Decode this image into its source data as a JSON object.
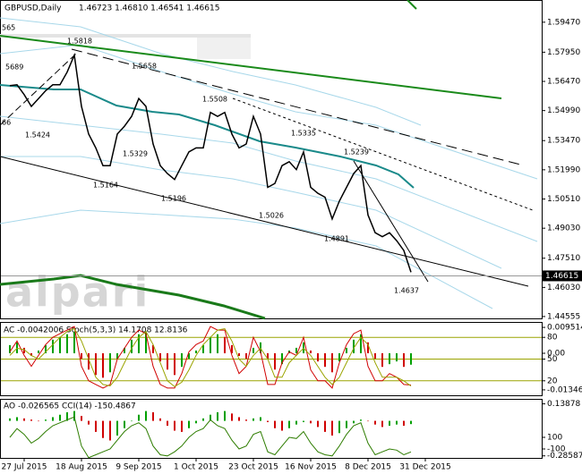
{
  "chart_data": [
    {
      "type": "line",
      "title": "GBPUSD,Daily",
      "subtitle": "1.46723 1.46810 1.46541 1.46615",
      "watermark": "alpari",
      "categories": [
        null,
        null,
        "27 Jul 2015",
        null,
        null,
        null,
        null,
        null,
        null,
        null,
        "18 Aug 2015",
        null,
        null,
        null,
        null,
        null,
        null,
        null,
        "9 Sep 2015",
        null,
        null,
        null,
        null,
        null,
        null,
        null,
        "1 Oct 2015",
        null,
        null,
        null,
        null,
        null,
        null,
        null,
        "23 Oct 2015",
        null,
        null,
        null,
        null,
        null,
        null,
        null,
        "16 Nov 2015",
        null,
        null,
        null,
        null,
        null,
        null,
        null,
        "8 Dec 2015",
        null,
        null,
        null,
        null,
        null,
        null,
        null,
        "31 Dec 2015"
      ],
      "series": [
        {
          "color": "#000000",
          "values": [
            1.5626,
            1.563,
            1.558,
            1.552,
            1.556,
            1.56,
            1.563,
            1.563,
            1.5694,
            1.578,
            1.552,
            1.538,
            1.531,
            1.522,
            1.522,
            1.538,
            1.542,
            1.547,
            1.556,
            1.552,
            1.533,
            1.522,
            1.518,
            1.515,
            1.522,
            1.529,
            1.531,
            1.531,
            1.549,
            1.547,
            1.549,
            1.538,
            1.531,
            1.533,
            1.547,
            1.538,
            1.511,
            1.513,
            1.522,
            1.524,
            1.52,
            1.529,
            1.511,
            1.508,
            1.506,
            1.495,
            1.504,
            1.511,
            1.518,
            1.522,
            1.497,
            1.488,
            1.486,
            1.488,
            1.484,
            1.479,
            1.468,
            null,
            null
          ]
        }
      ],
      "last_price": 1.46615,
      "annotations": [
        "565",
        "5689",
        "1.5818",
        "1.5658",
        "66",
        "1.5424",
        "1.5329",
        "1.5164",
        "1.5196",
        "1.5508",
        "1.5335",
        "1.5239",
        "1.5026",
        "1.4891",
        "1.4637"
      ],
      "ylim": [
        1.4446,
        1.6055
      ],
      "yticks": [
        {
          "value": 1.5947,
          "label": "1.59470"
        },
        {
          "value": 1.5795,
          "label": "1.57950"
        },
        {
          "value": 1.5647,
          "label": "1.56470"
        },
        {
          "value": 1.5499,
          "label": "1.54990"
        },
        {
          "value": 1.5347,
          "label": "1.53470"
        },
        {
          "value": 1.5199,
          "label": "1.51990"
        },
        {
          "value": 1.5051,
          "label": "1.50510"
        },
        {
          "value": 1.4903,
          "label": "1.49030"
        },
        {
          "value": 1.4751,
          "label": "1.47510"
        },
        {
          "value": 1.4603,
          "label": "1.46030"
        },
        {
          "value": 1.44555,
          "label": "1.44555"
        }
      ]
    },
    {
      "type": "indicator",
      "title": "AC -0.0042006  Stoch(5,3,3) 14.1708 12.8136",
      "ylim": [
        0,
        100
      ],
      "yticks": [
        20,
        50,
        80
      ],
      "grid": true,
      "grid_color": "#9aa400",
      "y2lim": [
        -0.01546,
        0.01118
      ],
      "y2ticks": [
        0.009514,
        {
          "value": 0,
          "label": "0.00"
        },
        -0.013461
      ],
      "series": [
        {
          "style": "histogram",
          "axis": "y2",
          "color": "#00a000",
          "down_color": "#d00000",
          "values": [
            0.003,
            0.004,
            0.002,
            -0.001,
            0.001,
            0.003,
            0.005,
            0.006,
            0.007,
            0.008,
            -0.002,
            -0.006,
            -0.008,
            -0.009,
            -0.007,
            -0.002,
            0.002,
            0.005,
            0.007,
            0.008,
            0.003,
            -0.003,
            -0.006,
            -0.008,
            -0.005,
            -0.002,
            0.001,
            0.003,
            0.006,
            0.007,
            0.006,
            0.003,
            -0.001,
            -0.002,
            0.002,
            0.004,
            -0.002,
            -0.006,
            -0.004,
            0.001,
            0.002,
            0.004,
            0.001,
            -0.003,
            -0.005,
            -0.007,
            -0.003,
            0.002,
            0.005,
            0.007,
            0.004,
            -0.002,
            -0.005,
            -0.004,
            -0.003,
            -0.005,
            -0.0042006,
            null,
            null
          ]
        },
        {
          "style": "line",
          "color": "#d00000",
          "values": [
            60,
            75,
            55,
            40,
            55,
            70,
            80,
            85,
            90,
            95,
            40,
            20,
            15,
            10,
            15,
            50,
            65,
            80,
            90,
            85,
            40,
            15,
            10,
            10,
            30,
            60,
            70,
            75,
            95,
            90,
            90,
            55,
            30,
            40,
            80,
            60,
            15,
            15,
            45,
            60,
            55,
            80,
            35,
            20,
            20,
            10,
            45,
            70,
            85,
            90,
            40,
            20,
            20,
            30,
            25,
            15,
            14.1708,
            null,
            null
          ]
        },
        {
          "style": "line",
          "color": "#9aa400",
          "values": [
            55,
            65,
            63,
            55,
            50,
            60,
            70,
            80,
            88,
            92,
            75,
            50,
            25,
            15,
            13,
            25,
            45,
            65,
            80,
            88,
            70,
            45,
            20,
            12,
            18,
            35,
            55,
            70,
            80,
            90,
            92,
            75,
            50,
            40,
            55,
            65,
            50,
            25,
            25,
            45,
            55,
            65,
            55,
            40,
            25,
            15,
            25,
            45,
            65,
            80,
            70,
            45,
            25,
            25,
            25,
            20,
            12.8136,
            null,
            null
          ]
        }
      ]
    },
    {
      "type": "indicator",
      "title": "AO -0.026565  CCI(14) -150.4867",
      "ylim": [
        -0.3025,
        0.1721
      ],
      "yticks": [
        0.13878,
        -0.28587
      ],
      "y2lim": [
        -254,
        746
      ],
      "y2ticks": [
        100,
        -100
      ],
      "series": [
        {
          "style": "histogram",
          "color": "#00a000",
          "down_color": "#d00000",
          "values": [
            0.02,
            0.03,
            0.02,
            0.01,
            0.0,
            0.01,
            0.03,
            0.05,
            0.07,
            0.08,
            0.04,
            -0.03,
            -0.09,
            -0.14,
            -0.16,
            -0.12,
            -0.06,
            0.0,
            0.05,
            0.08,
            0.07,
            0.02,
            -0.04,
            -0.08,
            -0.09,
            -0.06,
            -0.02,
            0.02,
            0.05,
            0.07,
            0.08,
            0.06,
            0.03,
            0.01,
            0.02,
            0.03,
            -0.01,
            -0.06,
            -0.08,
            -0.06,
            -0.03,
            -0.01,
            -0.02,
            -0.05,
            -0.09,
            -0.12,
            -0.1,
            -0.06,
            -0.02,
            0.01,
            0.0,
            -0.03,
            -0.05,
            -0.04,
            -0.03,
            -0.04,
            -0.026565,
            null,
            null
          ]
        },
        {
          "style": "line",
          "axis": "y2",
          "color": "#2e7d00",
          "values": [
            100,
            250,
            150,
            0,
            80,
            200,
            300,
            350,
            400,
            450,
            -50,
            -250,
            -200,
            -150,
            -100,
            50,
            200,
            300,
            350,
            250,
            -50,
            -200,
            -220,
            -150,
            -50,
            100,
            200,
            250,
            400,
            300,
            250,
            50,
            -100,
            -50,
            150,
            200,
            -150,
            -200,
            -50,
            100,
            80,
            200,
            0,
            -150,
            -200,
            -220,
            -50,
            150,
            300,
            350,
            0,
            -200,
            -150,
            -100,
            -120,
            -200,
            -150.4867,
            null,
            null
          ]
        }
      ]
    }
  ]
}
